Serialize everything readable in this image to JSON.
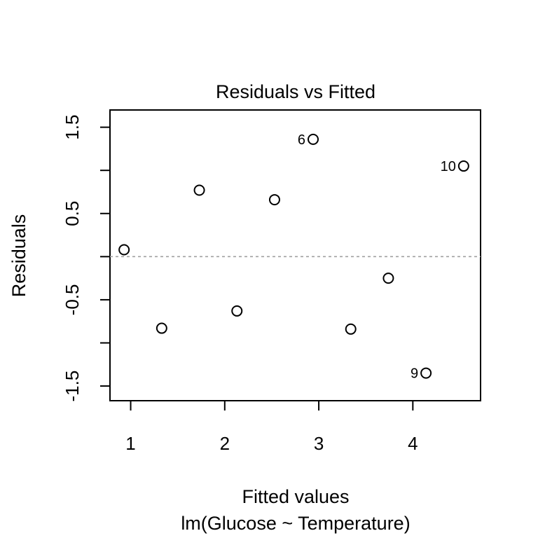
{
  "chart_data": {
    "type": "scatter",
    "title": "Residuals vs Fitted",
    "xlabel": "Fitted values",
    "subtitle": "lm(Glucose ~ Temperature)",
    "ylabel": "Residuals",
    "xlim": [
      0.78,
      4.72
    ],
    "ylim": [
      -1.67,
      1.7
    ],
    "x_ticks": [
      1,
      2,
      3,
      4
    ],
    "x_tick_labels": [
      "1",
      "2",
      "3",
      "4"
    ],
    "y_ticks": [
      -1.5,
      -1.0,
      -0.5,
      0.0,
      0.5,
      1.0,
      1.5
    ],
    "y_tick_labels": [
      "-1.5",
      "",
      "-0.5",
      "",
      "0.5",
      "",
      "1.5"
    ],
    "reference_line": {
      "y": 0,
      "style": "dashed",
      "color": "#a0a0a0"
    },
    "grid": false,
    "points": [
      {
        "x": 0.93,
        "y": 0.08,
        "label": ""
      },
      {
        "x": 1.33,
        "y": -0.83,
        "label": ""
      },
      {
        "x": 1.73,
        "y": 0.77,
        "label": ""
      },
      {
        "x": 2.13,
        "y": -0.63,
        "label": ""
      },
      {
        "x": 2.53,
        "y": 0.66,
        "label": ""
      },
      {
        "x": 2.94,
        "y": 1.36,
        "label": "6"
      },
      {
        "x": 3.34,
        "y": -0.84,
        "label": ""
      },
      {
        "x": 3.74,
        "y": -0.25,
        "label": ""
      },
      {
        "x": 4.14,
        "y": -1.35,
        "label": "9"
      },
      {
        "x": 4.54,
        "y": 1.05,
        "label": "10"
      }
    ]
  }
}
